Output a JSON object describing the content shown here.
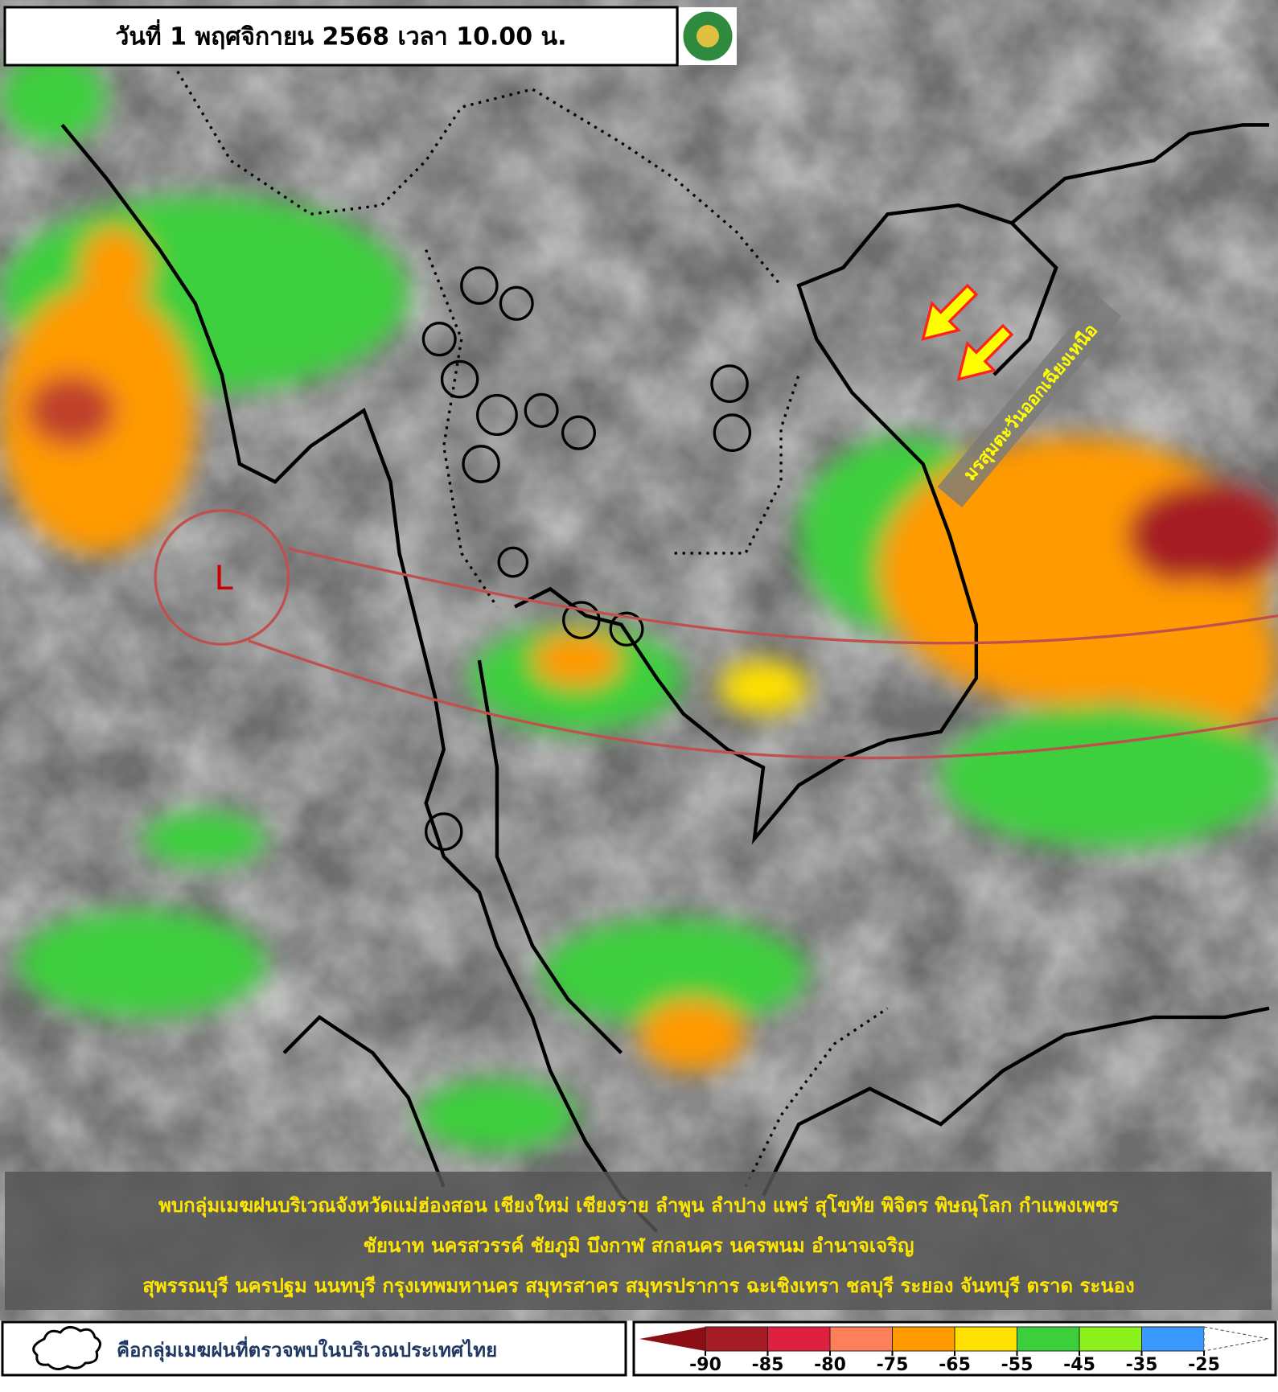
{
  "header": {
    "title": "วันที่ 1 พฤศจิกายน 2568 เวลา 10.00 น."
  },
  "map": {
    "low_pressure_label": "L",
    "monsoon_label": "มรสุมตะวันออกเฉียงเหนือ"
  },
  "summary": {
    "lines": [
      "พบกลุ่มเมฆฝนบริเวณจังหวัดแม่ฮ่องสอน เชียงใหม่ เชียงราย ลำพูน ลำปาง แพร่ สุโขทัย พิจิตร พิษณุโลก กำแพงเพชร",
      "ชัยนาท นครสวรรค์ ชัยภูมิ บึงกาฬ สกลนคร นครพนม อำนาจเจริญ",
      "สุพรรณบุรี นครปฐม นนทบุรี กรุงเทพมหานคร สมุทรสาคร สมุทรปราการ ฉะเชิงเทรา ชลบุรี ระยอง จันทบุรี ตราด ระนอง"
    ]
  },
  "legend": {
    "cloud_symbol_text": "คือกลุ่มเมฆฝนที่ตรวจพบในบริเวณประเทศไทย",
    "colorbar": {
      "ticks": [
        -90,
        -85,
        -80,
        -75,
        -65,
        -55,
        -45,
        -35,
        -25
      ],
      "colors": [
        "#a51c24",
        "#e02040",
        "#ff7f5a",
        "#ff9a00",
        "#ffe000",
        "#3ccf3c",
        "#8cf21e",
        "#3a99ff"
      ],
      "low_end_color": "#8b0f14"
    }
  }
}
